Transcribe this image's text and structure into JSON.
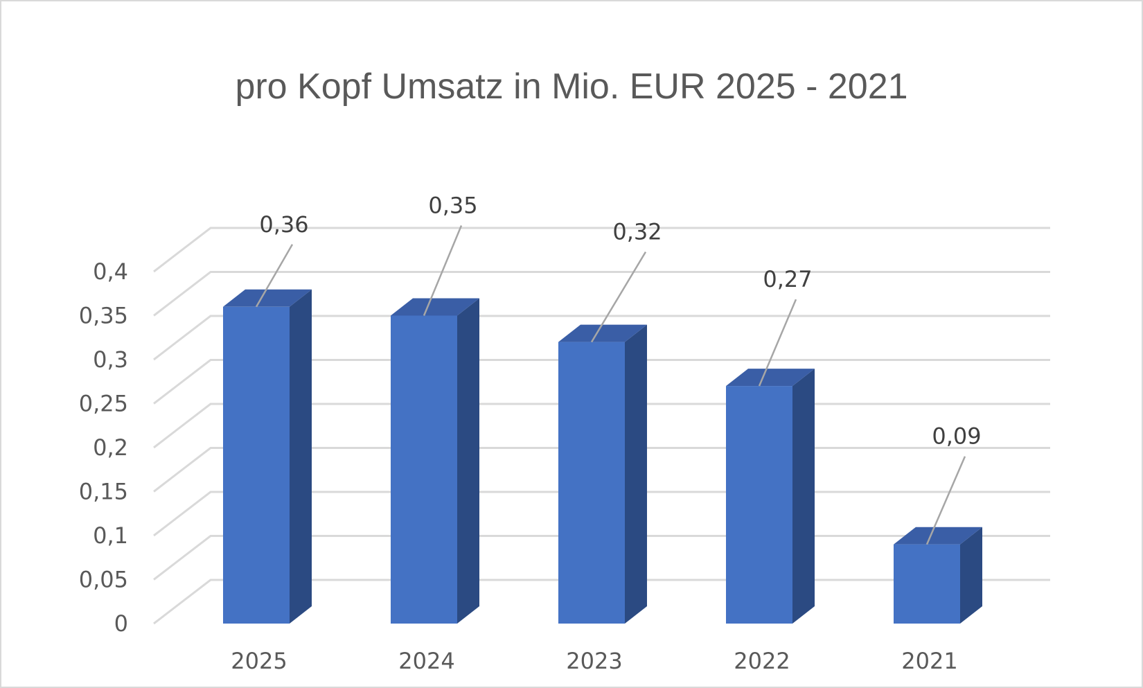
{
  "chart_data": {
    "type": "bar",
    "title": "pro Kopf Umsatz in Mio. EUR 2025 - 2021",
    "categories": [
      "2025",
      "2024",
      "2023",
      "2022",
      "2021"
    ],
    "values": [
      0.36,
      0.35,
      0.32,
      0.27,
      0.09
    ],
    "value_labels": [
      "0,36",
      "0,35",
      "0,32",
      "0,27",
      "0,09"
    ],
    "y_ticks": [
      "0",
      "0,05",
      "0,1",
      "0,15",
      "0,2",
      "0,25",
      "0,3",
      "0,35",
      "0,4"
    ],
    "ylim": [
      0,
      0.4
    ],
    "xlabel": "",
    "ylabel": "",
    "grid": true,
    "legend": "none",
    "style": "3d-column",
    "colors": {
      "bar_front": "#4472c4",
      "bar_side": "#2b4a82",
      "bar_top": "#3a5ea6",
      "grid": "#d9d9d9",
      "leader": "#a6a6a6"
    }
  }
}
